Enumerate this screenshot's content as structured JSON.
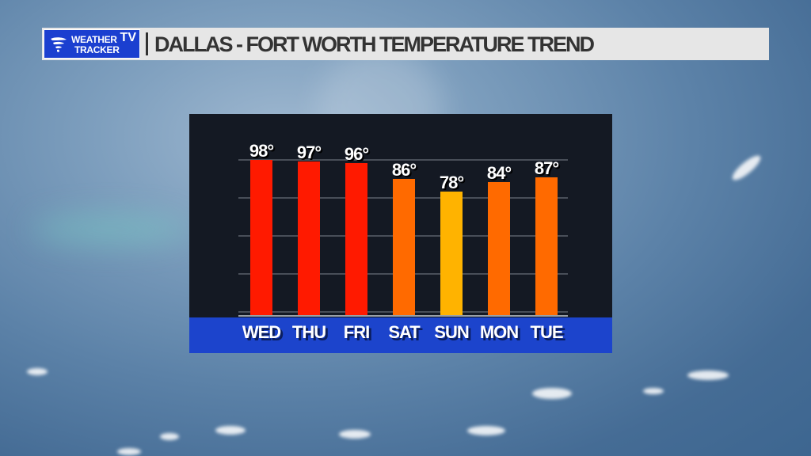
{
  "header": {
    "logo_line1": "WEATHER",
    "logo_line2": "TRACKER",
    "logo_tv": "TV",
    "title": "DALLAS - FORT WORTH TEMPERATURE TREND"
  },
  "chart_data": {
    "type": "bar",
    "title": "DALLAS - FORT WORTH TEMPERATURE TREND",
    "xlabel": "",
    "ylabel": "",
    "categories": [
      "WED",
      "THU",
      "FRI",
      "SAT",
      "SUN",
      "MON",
      "TUE"
    ],
    "values": [
      98,
      97,
      96,
      86,
      78,
      84,
      87
    ],
    "value_labels": [
      "98°",
      "97°",
      "96°",
      "86°",
      "78°",
      "84°",
      "87°"
    ],
    "bar_colors": [
      "#ff1a00",
      "#ff1a00",
      "#ff1a00",
      "#ff6a00",
      "#ffb300",
      "#ff6a00",
      "#ff6a00"
    ],
    "ylim": [
      0,
      100
    ],
    "grid": true,
    "legend": "none"
  },
  "colors": {
    "panel_bg": "#141923",
    "day_band": "#1c44cc",
    "header_bg": "#e6e6e6",
    "logo_bg": "#1b3fd0"
  }
}
